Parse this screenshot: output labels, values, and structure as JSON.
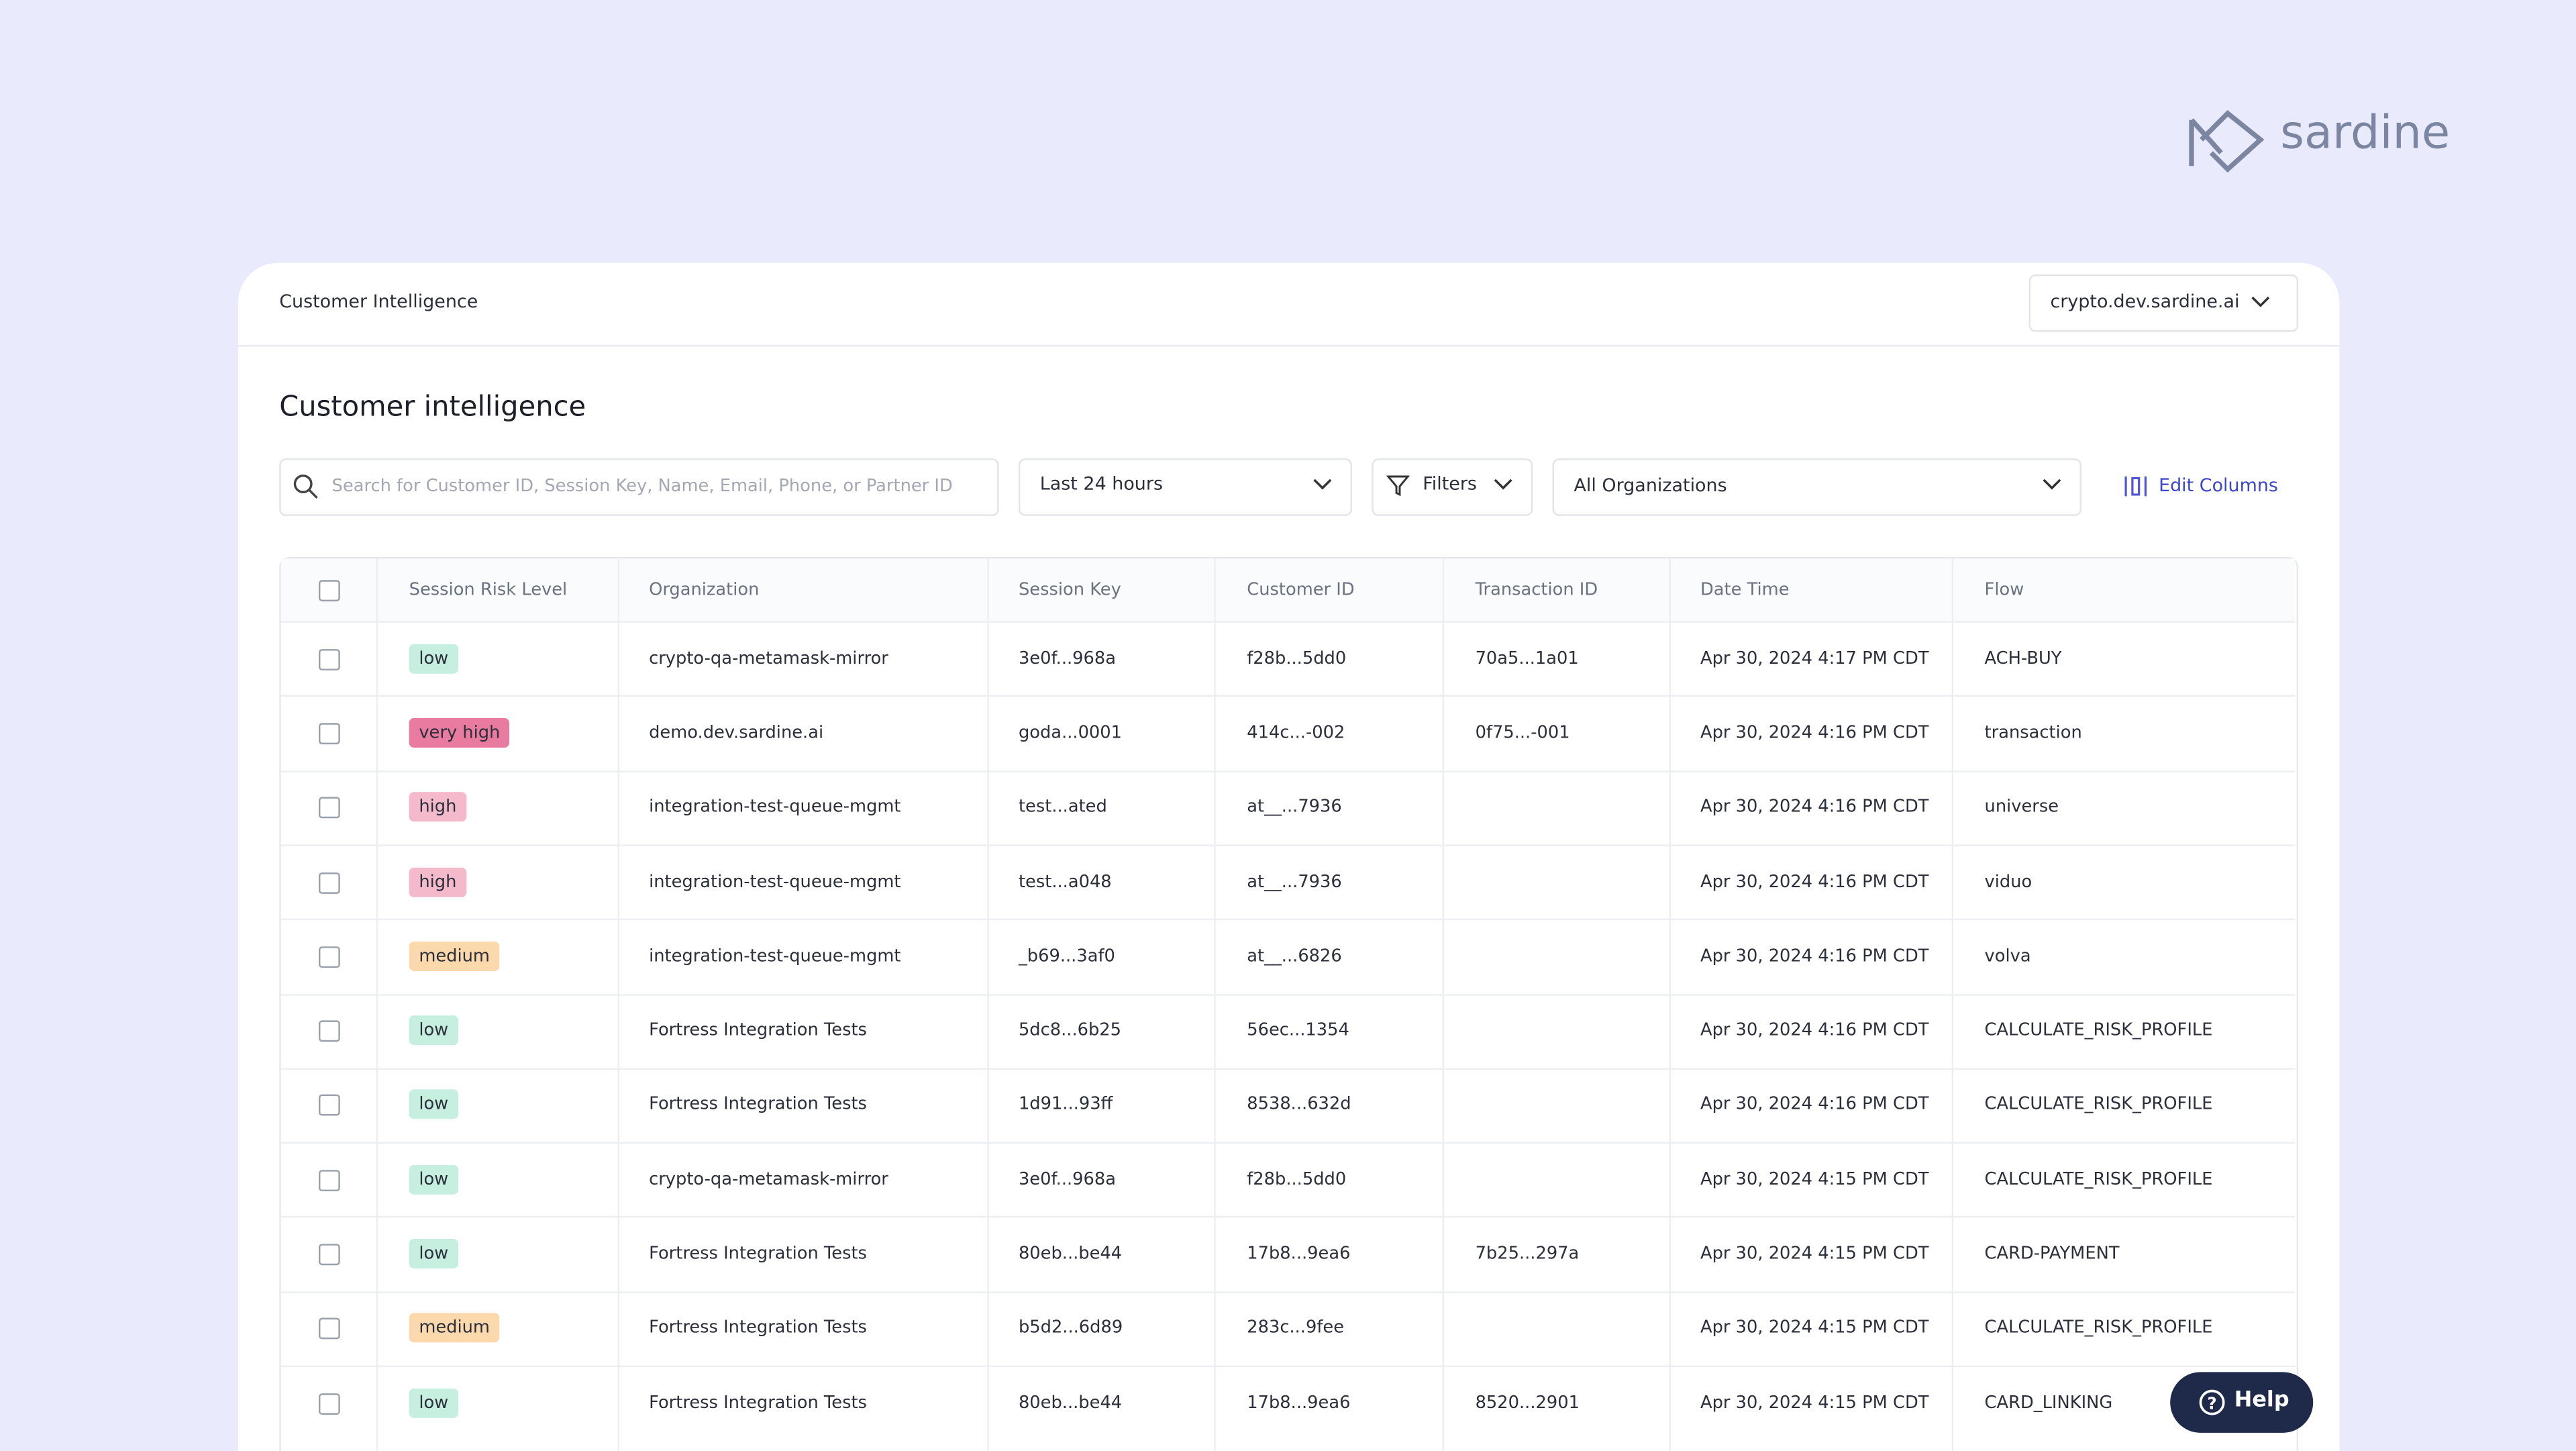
{
  "logo": {
    "text": "sardine"
  },
  "header": {
    "title": "Customer Intelligence",
    "org_selector": "crypto.dev.sardine.ai"
  },
  "page": {
    "title": "Customer intelligence"
  },
  "toolbar": {
    "search_placeholder": "Search for Customer ID, Session Key, Name, Email, Phone, or Partner ID",
    "time_range": "Last 24 hours",
    "filters": "Filters",
    "organizations": "All Organizations",
    "edit_columns": "Edit Columns"
  },
  "table": {
    "columns": [
      "Session Risk Level",
      "Organization",
      "Session Key",
      "Customer ID",
      "Transaction ID",
      "Date Time",
      "Flow"
    ],
    "rows": [
      [
        "low",
        "crypto-qa-metamask-mirror",
        "3e0f...968a",
        "f28b...5dd0",
        "70a5...1a01",
        "Apr 30, 2024 4:17 PM CDT",
        "ACH-BUY"
      ],
      [
        "very high",
        "demo.dev.sardine.ai",
        "goda...0001",
        "414c...-002",
        "0f75...-001",
        "Apr 30, 2024 4:16 PM CDT",
        "transaction"
      ],
      [
        "high",
        "integration-test-queue-mgmt",
        "test...ated",
        "at__...7936",
        null,
        "Apr 30, 2024 4:16 PM CDT",
        "universe"
      ],
      [
        "high",
        "integration-test-queue-mgmt",
        "test...a048",
        "at__...7936",
        null,
        "Apr 30, 2024 4:16 PM CDT",
        "viduo"
      ],
      [
        "medium",
        "integration-test-queue-mgmt",
        "_b69...3af0",
        "at__...6826",
        null,
        "Apr 30, 2024 4:16 PM CDT",
        "volva"
      ],
      [
        "low",
        "Fortress Integration Tests",
        "5dc8...6b25",
        "56ec...1354",
        null,
        "Apr 30, 2024 4:16 PM CDT",
        "CALCULATE_RISK_PROFILE"
      ],
      [
        "low",
        "Fortress Integration Tests",
        "1d91...93ff",
        "8538...632d",
        null,
        "Apr 30, 2024 4:16 PM CDT",
        "CALCULATE_RISK_PROFILE"
      ],
      [
        "low",
        "crypto-qa-metamask-mirror",
        "3e0f...968a",
        "f28b...5dd0",
        null,
        "Apr 30, 2024 4:15 PM CDT",
        "CALCULATE_RISK_PROFILE"
      ],
      [
        "low",
        "Fortress Integration Tests",
        "80eb...be44",
        "17b8...9ea6",
        "7b25...297a",
        "Apr 30, 2024 4:15 PM CDT",
        "CARD-PAYMENT"
      ],
      [
        "medium",
        "Fortress Integration Tests",
        "b5d2...6d89",
        "283c...9fee",
        null,
        "Apr 30, 2024 4:15 PM CDT",
        "CALCULATE_RISK_PROFILE"
      ],
      [
        "low",
        "Fortress Integration Tests",
        "80eb...be44",
        "17b8...9ea6",
        "8520...2901",
        "Apr 30, 2024 4:15 PM CDT",
        "CARD_LINKING"
      ]
    ]
  },
  "help": {
    "label": "Help"
  }
}
